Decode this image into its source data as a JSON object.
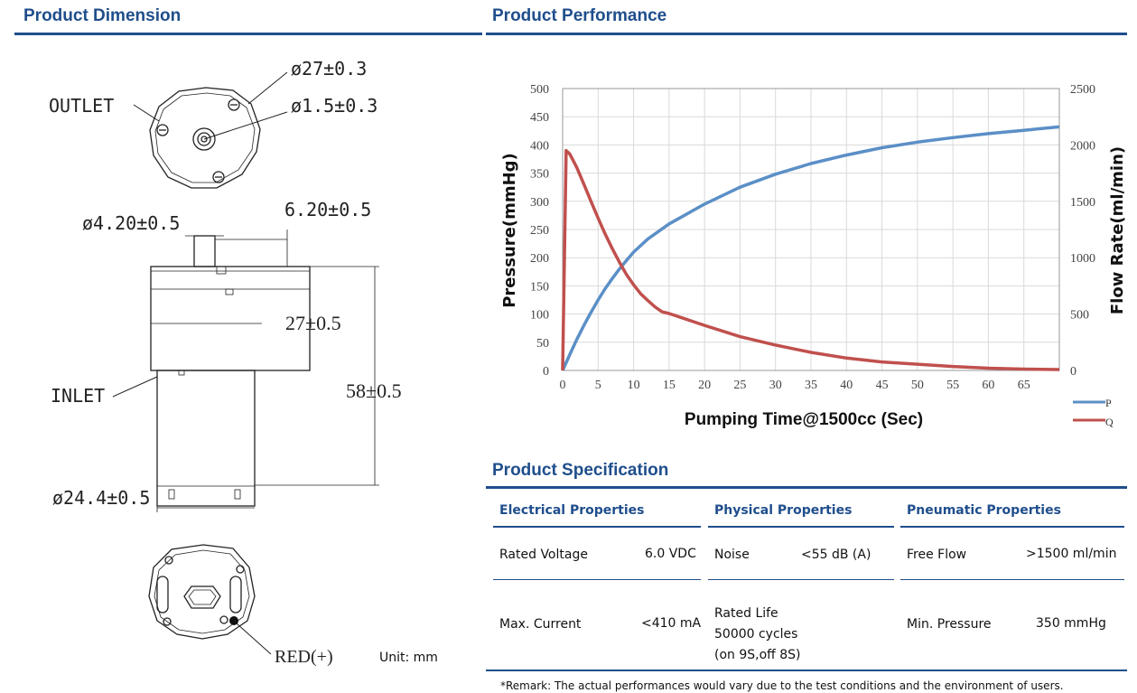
{
  "dimension": {
    "title": "Product Dimension",
    "labels": {
      "outer_diameter": "ø27±0.3",
      "outlet_hole": "ø1.5±0.3",
      "outlet": "OUTLET",
      "nozzle_diameter": "ø4.20±0.5",
      "nozzle_height": "6.20±0.5",
      "head_height": "27±0.5",
      "total_height": "58±0.5",
      "inlet": "INLET",
      "motor_diameter": "ø24.4±0.5",
      "red_terminal": "RED(+)",
      "unit": "Unit: mm"
    }
  },
  "performance": {
    "title": "Product Performance",
    "chart_data": {
      "type": "line",
      "xlabel": "Pumping Time@1500cc (Sec)",
      "ylabel_left": "Pressure(mmHg)",
      "ylabel_right": "Flow Rate(ml/min)",
      "xlim": [
        0,
        70
      ],
      "ylim_left": [
        0,
        500
      ],
      "ylim_right": [
        0,
        2500
      ],
      "x_ticks": [
        "0",
        "5",
        "10",
        "15",
        "20",
        "25",
        "30",
        "35",
        "40",
        "45",
        "50",
        "55",
        "60",
        "65"
      ],
      "y_left_ticks": [
        "0",
        "50",
        "100",
        "150",
        "200",
        "250",
        "300",
        "350",
        "400",
        "450",
        "500"
      ],
      "y_right_ticks": [
        "0",
        "500",
        "1000",
        "1500",
        "2000",
        "2500"
      ],
      "grid": true,
      "legend": "bottom-right",
      "series": [
        {
          "name": "P",
          "axis": "left",
          "color": "#5b8fc7",
          "x": [
            0,
            1,
            2,
            3,
            4,
            5,
            6,
            7,
            8,
            9,
            10,
            12,
            15,
            20,
            25,
            30,
            35,
            40,
            45,
            50,
            55,
            60,
            65,
            70
          ],
          "y": [
            0,
            28,
            55,
            80,
            103,
            125,
            145,
            163,
            180,
            195,
            210,
            233,
            260,
            295,
            325,
            348,
            367,
            382,
            395,
            405,
            413,
            420,
            426,
            432
          ]
        },
        {
          "name": "Q",
          "axis": "right",
          "color": "#c0504d",
          "x": [
            0,
            0.5,
            1,
            2,
            3,
            4,
            5,
            6,
            7,
            8,
            9,
            10,
            11,
            12,
            13,
            14,
            15,
            20,
            25,
            30,
            35,
            40,
            45,
            50,
            55,
            60,
            65,
            70
          ],
          "y": [
            0,
            1950,
            1920,
            1800,
            1650,
            1500,
            1350,
            1210,
            1080,
            960,
            850,
            760,
            680,
            620,
            565,
            520,
            505,
            400,
            300,
            225,
            160,
            110,
            75,
            55,
            35,
            20,
            12,
            8
          ]
        }
      ]
    }
  },
  "specification": {
    "title": "Product Specification",
    "headers": [
      "Electrical Properties",
      "Physical Properties",
      "Pneumatic Properties"
    ],
    "electrical": {
      "rated_voltage_label": "Rated Voltage",
      "rated_voltage_value": "6.0 VDC",
      "max_current_label": "Max. Current",
      "max_current_value": "<410 mA"
    },
    "physical": {
      "noise_label": "Noise",
      "noise_value": "<55 dB (A)",
      "rated_life_line1": "Rated Life",
      "rated_life_line2": "50000 cycles",
      "rated_life_line3": "(on 9S,off 8S)"
    },
    "pneumatic": {
      "free_flow_label": "Free Flow",
      "free_flow_value": ">1500 ml/min",
      "min_pressure_label": "Min. Pressure",
      "min_pressure_value": "350 mmHg"
    },
    "remark": "*Remark: The actual performances would vary due to the test conditions and the environment of users."
  }
}
